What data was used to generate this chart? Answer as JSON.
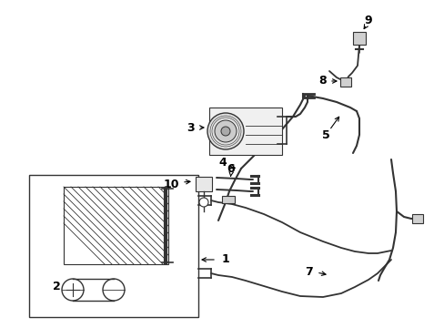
{
  "bg_color": "#ffffff",
  "line_color": "#333333",
  "text_color": "#000000",
  "fig_width": 4.89,
  "fig_height": 3.6,
  "dpi": 100,
  "label_fontsize": 9
}
